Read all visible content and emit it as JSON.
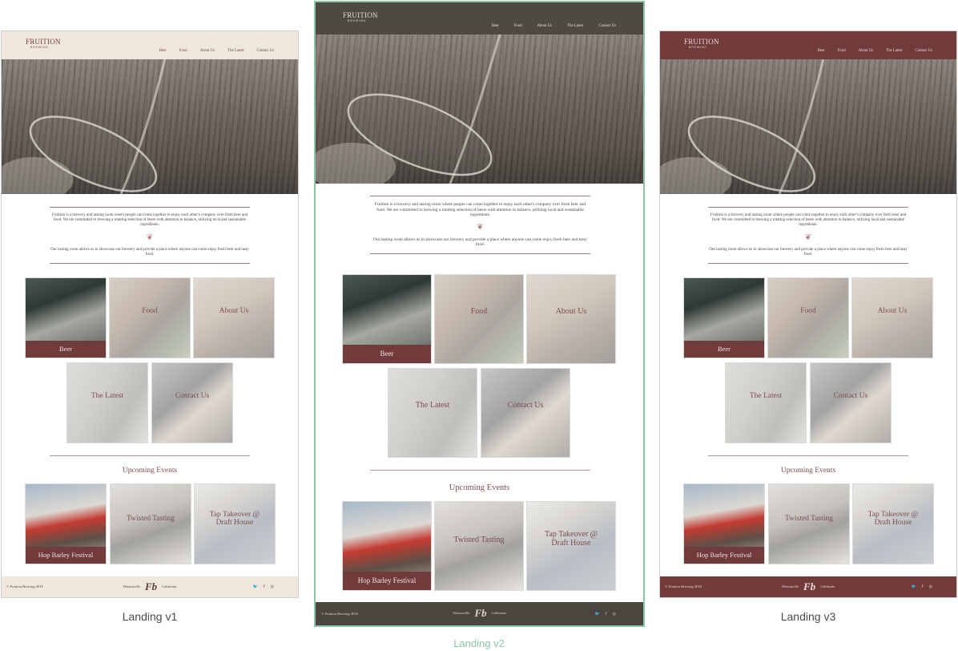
{
  "brand": {
    "logo_word": "FRUITION",
    "logo_sub": "BREWING",
    "accent": "#713a3b",
    "v1_header_bg": "#efe7dc",
    "v2_header_bg": "#48423c",
    "v3_header_bg": "#713a3b",
    "v2_frame": "#8cc4a7"
  },
  "nav": [
    "Beer",
    "Food",
    "About Us",
    "The Latest",
    "Contact Us"
  ],
  "intro": {
    "p1": "Fruition is a brewery and tasting room where people can come together to enjoy each other's company over fresh beer and food. We are committed to brewing a rotating selection of beers with attention to balance, utilizing local and sustainable ingredients.",
    "p2": "Our tasting room allows us to showcase our brewery and provide a place where anyone can come enjoy fresh beer and tasty food.",
    "icon": "hop-icon"
  },
  "tiles": [
    "Beer",
    "Food",
    "About Us",
    "The Latest",
    "Contact Us"
  ],
  "events": {
    "title": "Upcoming Events",
    "items": [
      "Hop Barley Festival",
      "Twisted Tasting",
      "Tap Takeover @ Draft House"
    ]
  },
  "footer": {
    "copyright": "© Fruition Brewing 2018",
    "city": "Watsonville",
    "monogram": "Fb",
    "state": "California",
    "social": [
      "twitter-icon",
      "facebook-icon",
      "instagram-icon"
    ]
  },
  "captions": {
    "v1": "Landing v1",
    "v2": "Landing v2",
    "v3": "Landing v3"
  }
}
